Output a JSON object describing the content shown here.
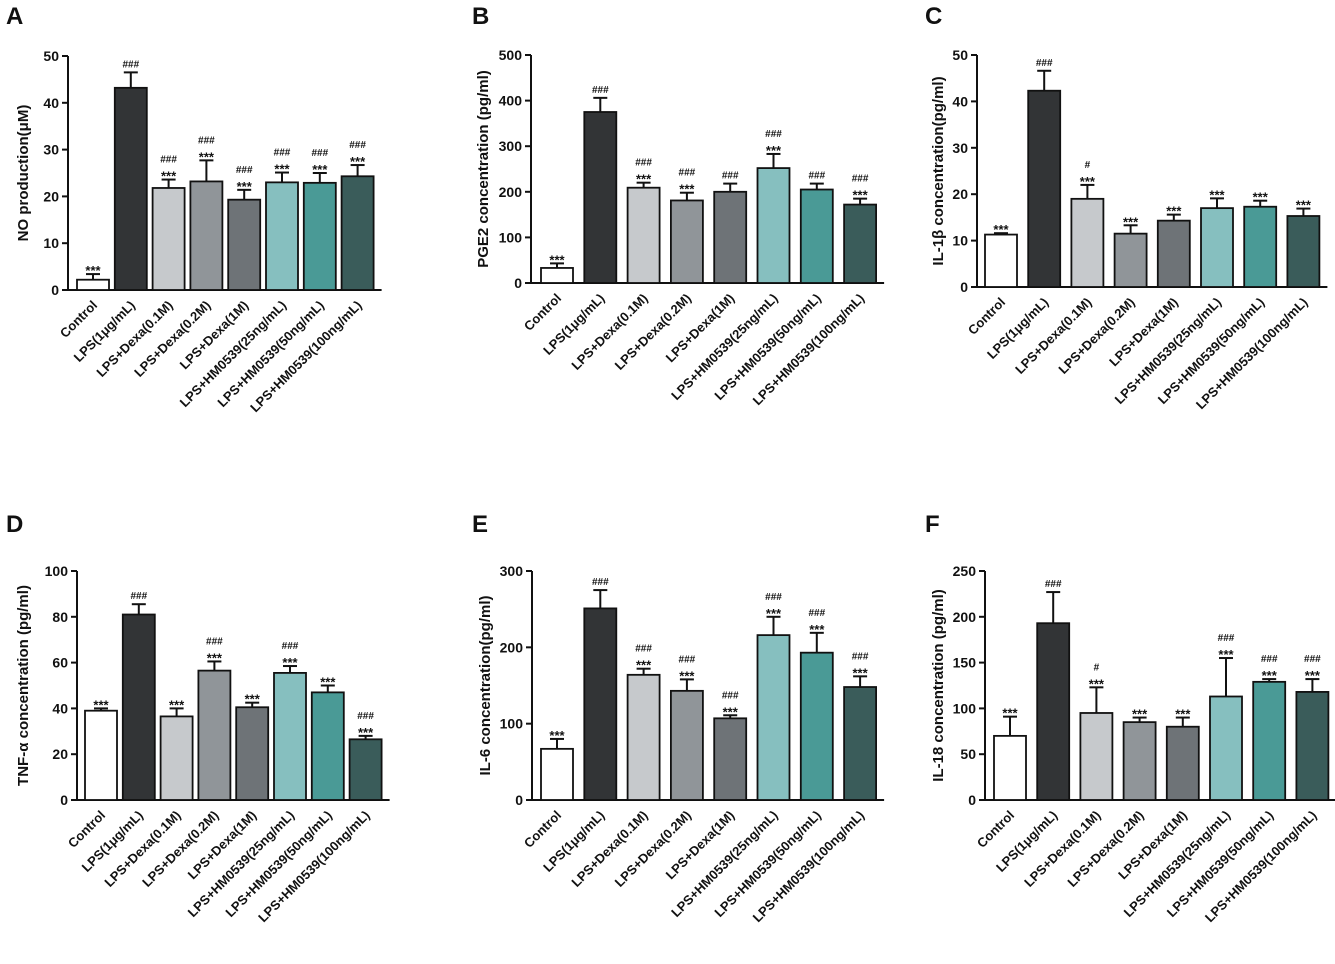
{
  "categories": [
    "Control",
    "LPS(1μg/mL)",
    "LPS+Dexa(0.1M)",
    "LPS+Dexa(0.2M)",
    "LPS+Dexa(1M)",
    "LPS+HM0539(25ng/mL)",
    "LPS+HM0539(50ng/mL)",
    "LPS+HM0539(100ng/mL)"
  ],
  "bar_colors": [
    "#ffffff",
    "#323436",
    "#c6c9cc",
    "#909599",
    "#6e7377",
    "#86bfbf",
    "#4a9a96",
    "#3a5c5a"
  ],
  "chart_data": [
    {
      "panel": "A",
      "type": "bar",
      "ylabel": "NO production(μM)",
      "ylim": [
        0,
        50
      ],
      "yticks": [
        0,
        10,
        20,
        30,
        40,
        50
      ],
      "values": [
        2.2,
        43.2,
        21.8,
        23.2,
        19.3,
        23.0,
        22.9,
        24.3
      ],
      "errors": [
        1.2,
        3.3,
        1.8,
        4.5,
        2.1,
        2.1,
        2.1,
        2.4
      ],
      "stars": [
        "***",
        "",
        "***",
        "***",
        "***",
        "***",
        "***",
        "***"
      ],
      "hashes": [
        "",
        "###",
        "###",
        "###",
        "###",
        "###",
        "###",
        "###"
      ]
    },
    {
      "panel": "B",
      "type": "bar",
      "ylabel": "PGE2 concentration (pg/ml)",
      "ylim": [
        0,
        500
      ],
      "yticks": [
        0,
        100,
        200,
        300,
        400,
        500
      ],
      "values": [
        33,
        375,
        209,
        181,
        200,
        252,
        205,
        172
      ],
      "errors": [
        10,
        31,
        11,
        17,
        18,
        31,
        13,
        13
      ],
      "stars": [
        "***",
        "",
        "***",
        "***",
        "",
        "***",
        "",
        "***"
      ],
      "hashes": [
        "",
        "###",
        "###",
        "###",
        "###",
        "###",
        "###",
        "###"
      ]
    },
    {
      "panel": "C",
      "type": "bar",
      "ylabel": "IL-1β concentration(pg/ml)",
      "ylim": [
        0,
        50
      ],
      "yticks": [
        0,
        10,
        20,
        30,
        40,
        50
      ],
      "values": [
        11.3,
        42.3,
        19.0,
        11.5,
        14.3,
        17.0,
        17.3,
        15.3
      ],
      "errors": [
        0.3,
        4.3,
        3.0,
        1.8,
        1.3,
        2.1,
        1.3,
        1.6
      ],
      "stars": [
        "***",
        "",
        "***",
        "***",
        "***",
        "***",
        "***",
        "***"
      ],
      "hashes": [
        "",
        "###",
        "#",
        "",
        "",
        "",
        "",
        ""
      ]
    },
    {
      "panel": "D",
      "type": "bar",
      "ylabel": "TNF-α concentration (pg/ml)",
      "ylim": [
        0,
        100
      ],
      "yticks": [
        0,
        20,
        40,
        60,
        80,
        100
      ],
      "values": [
        39,
        81,
        36.5,
        56.5,
        40.5,
        55.5,
        47,
        26.5
      ],
      "errors": [
        1.0,
        4.5,
        3.5,
        4.0,
        2.0,
        3.0,
        3.0,
        1.5
      ],
      "stars": [
        "***",
        "",
        "***",
        "***",
        "***",
        "***",
        "***",
        "***"
      ],
      "hashes": [
        "",
        "###",
        "",
        "###",
        "",
        "###",
        "",
        "###"
      ]
    },
    {
      "panel": "E",
      "type": "bar",
      "ylabel": "IL-6 concentration(pg/ml)",
      "ylim": [
        0,
        300
      ],
      "yticks": [
        0,
        100,
        200,
        300
      ],
      "values": [
        67,
        251,
        164,
        143,
        107,
        216,
        193,
        148
      ],
      "errors": [
        13,
        24,
        8,
        15,
        4,
        24,
        26,
        14
      ],
      "stars": [
        "***",
        "",
        "***",
        "***",
        "***",
        "***",
        "***",
        "***"
      ],
      "hashes": [
        "",
        "###",
        "###",
        "###",
        "###",
        "###",
        "###",
        "###"
      ]
    },
    {
      "panel": "F",
      "type": "bar",
      "ylabel": "IL-18 concentration (pg/ml)",
      "ylim": [
        0,
        250
      ],
      "yticks": [
        0,
        50,
        100,
        150,
        200,
        250
      ],
      "values": [
        70,
        193,
        95,
        85,
        80,
        113,
        129,
        118
      ],
      "errors": [
        21,
        34,
        28,
        5,
        10,
        42,
        3,
        14
      ],
      "stars": [
        "***",
        "",
        "***",
        "***",
        "***",
        "***",
        "***",
        "***"
      ],
      "hashes": [
        "",
        "###",
        "#",
        "",
        "",
        "###",
        "###",
        "###"
      ]
    }
  ]
}
